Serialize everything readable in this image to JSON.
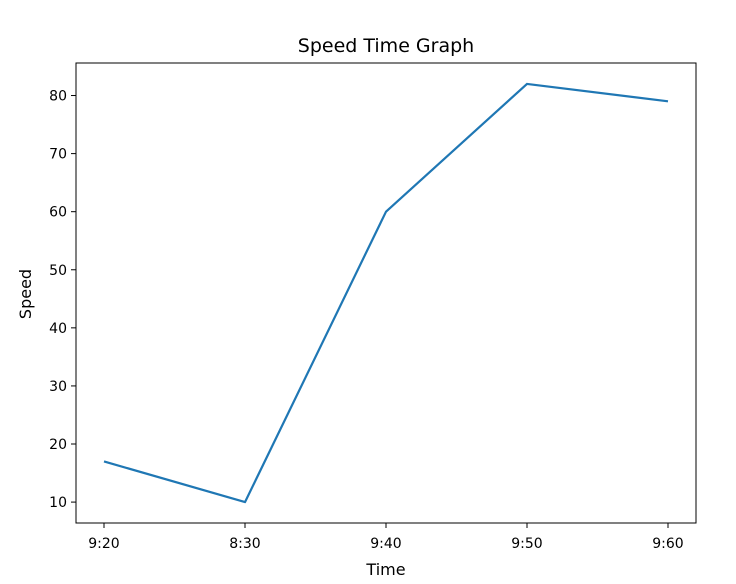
{
  "chart_data": {
    "type": "line",
    "title": "Speed Time Graph",
    "xlabel": "Time",
    "ylabel": "Speed",
    "categories": [
      "9:20",
      "8:30",
      "9:40",
      "9:50",
      "9:60"
    ],
    "series": [
      {
        "values": [
          17,
          10,
          60,
          82,
          79
        ]
      }
    ],
    "ylim": [
      6.4,
      85.6
    ],
    "yticks": [
      10,
      20,
      30,
      40,
      50,
      60,
      70,
      80
    ],
    "grid": false,
    "colors": {
      "line": "#1f77b4",
      "axes": "#000000"
    }
  }
}
